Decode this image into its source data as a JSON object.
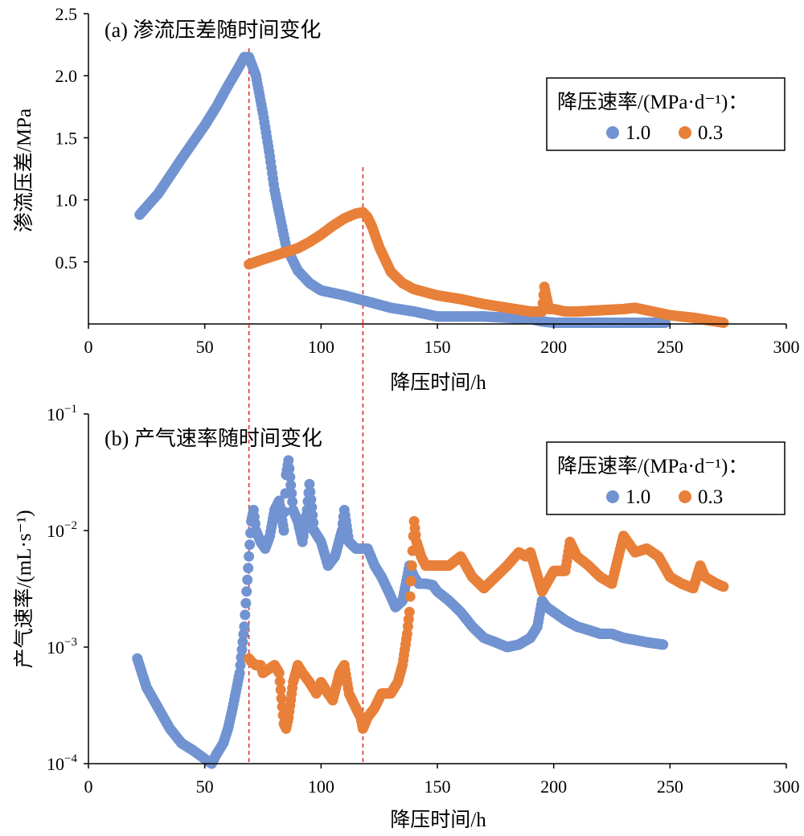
{
  "chart_data": [
    {
      "type": "scatter",
      "title": "(a) 渗流压差随时间变化",
      "xlabel": "降压时间/h",
      "ylabel": "渗流压差/MPa",
      "xlim": [
        0,
        300
      ],
      "ylim": [
        0,
        2.5
      ],
      "xticks": [
        0,
        50,
        100,
        150,
        200,
        250,
        300
      ],
      "xtick_labels": [
        "0",
        "50",
        "100",
        "150",
        "200",
        "250",
        "300"
      ],
      "yticks": [
        0.5,
        1.0,
        1.5,
        2.0,
        2.5
      ],
      "ytick_labels": [
        "0.5",
        "1.0",
        "1.5",
        "2.0",
        "2.5"
      ],
      "grid": false,
      "legend": {
        "title": "降压速率/(MPa·d⁻¹)：",
        "placement": "top-right",
        "entries": [
          "1.0",
          "0.3"
        ]
      },
      "vlines": [
        69,
        118
      ],
      "series": [
        {
          "name": "1.0",
          "color": "#7193D1",
          "x": [
            22,
            30,
            40,
            50,
            55,
            60,
            65,
            67,
            69,
            72,
            75,
            78,
            80,
            85,
            90,
            95,
            100,
            110,
            120,
            130,
            140,
            150,
            160,
            170,
            180,
            190,
            195,
            200,
            210,
            220,
            230,
            240,
            248
          ],
          "y": [
            0.88,
            1.05,
            1.33,
            1.6,
            1.75,
            1.92,
            2.08,
            2.15,
            2.15,
            2.0,
            1.7,
            1.35,
            1.08,
            0.62,
            0.43,
            0.33,
            0.27,
            0.23,
            0.18,
            0.13,
            0.1,
            0.06,
            0.06,
            0.06,
            0.05,
            0.04,
            0.02,
            0.01,
            0.01,
            0.01,
            0.01,
            0.01,
            0.01
          ]
        },
        {
          "name": "0.3",
          "color": "#E8803A",
          "x": [
            69,
            72,
            75,
            80,
            85,
            90,
            95,
            100,
            105,
            110,
            115,
            118,
            120,
            122,
            125,
            130,
            135,
            140,
            150,
            160,
            170,
            180,
            190,
            195,
            196,
            198,
            200,
            205,
            210,
            220,
            230,
            235,
            240,
            250,
            260,
            273
          ],
          "y": [
            0.48,
            0.5,
            0.52,
            0.55,
            0.58,
            0.61,
            0.66,
            0.72,
            0.79,
            0.85,
            0.89,
            0.9,
            0.86,
            0.78,
            0.62,
            0.42,
            0.33,
            0.28,
            0.23,
            0.2,
            0.16,
            0.13,
            0.1,
            0.1,
            0.3,
            0.12,
            0.12,
            0.1,
            0.1,
            0.11,
            0.12,
            0.13,
            0.11,
            0.07,
            0.05,
            0.01
          ]
        }
      ]
    },
    {
      "type": "scatter",
      "title": "(b) 产气速率随时间变化",
      "xlabel": "降压时间/h",
      "ylabel": "产气速率/(mL·s⁻¹)",
      "xlim": [
        0,
        300
      ],
      "ylim": [
        0.0001,
        0.1
      ],
      "yscale": "log",
      "xticks": [
        0,
        50,
        100,
        150,
        200,
        250,
        300
      ],
      "xtick_labels": [
        "0",
        "50",
        "100",
        "150",
        "200",
        "250",
        "300"
      ],
      "yticks": [
        0.0001,
        0.001,
        0.01,
        0.1
      ],
      "ytick_base": "10",
      "ytick_exponents": [
        "−4",
        "−3",
        "−2",
        "−1"
      ],
      "grid": false,
      "legend": {
        "title": "降压速率/(MPa·d⁻¹)：",
        "placement": "top-right",
        "entries": [
          "1.0",
          "0.3"
        ]
      },
      "vlines": [
        69,
        118
      ],
      "series": [
        {
          "name": "1.0",
          "color": "#7193D1",
          "x": [
            21,
            23,
            25,
            30,
            35,
            40,
            45,
            50,
            53,
            55,
            58,
            60,
            62,
            65,
            67,
            68,
            69,
            70,
            71,
            72,
            74,
            76,
            78,
            80,
            82,
            84,
            85,
            86,
            88,
            90,
            92,
            94,
            95,
            97,
            100,
            103,
            106,
            109,
            110,
            112,
            115,
            118,
            120,
            123,
            126,
            129,
            132,
            135,
            138,
            140,
            142,
            145,
            148,
            150,
            155,
            160,
            165,
            170,
            175,
            180,
            185,
            190,
            193,
            195,
            197,
            200,
            205,
            210,
            215,
            220,
            225,
            230,
            235,
            240,
            247
          ],
          "y": [
            0.0008,
            0.0006,
            0.00045,
            0.0003,
            0.0002,
            0.00015,
            0.00013,
            0.00011,
            0.0001,
            0.00012,
            0.00015,
            0.0002,
            0.0003,
            0.0006,
            0.0015,
            0.003,
            0.006,
            0.012,
            0.015,
            0.01,
            0.008,
            0.007,
            0.009,
            0.015,
            0.018,
            0.01,
            0.03,
            0.04,
            0.015,
            0.012,
            0.008,
            0.015,
            0.025,
            0.01,
            0.008,
            0.005,
            0.006,
            0.01,
            0.015,
            0.008,
            0.007,
            0.007,
            0.007,
            0.005,
            0.004,
            0.003,
            0.0022,
            0.0025,
            0.005,
            0.004,
            0.0035,
            0.0035,
            0.0034,
            0.003,
            0.0025,
            0.002,
            0.0015,
            0.0012,
            0.0011,
            0.001,
            0.00105,
            0.0012,
            0.0015,
            0.0025,
            0.0022,
            0.002,
            0.0017,
            0.0015,
            0.0014,
            0.0013,
            0.0013,
            0.0012,
            0.00115,
            0.0011,
            0.00105
          ]
        },
        {
          "name": "0.3",
          "color": "#E8803A",
          "x": [
            69,
            70,
            72,
            74,
            75,
            80,
            82,
            84,
            85,
            86,
            88,
            90,
            92,
            95,
            98,
            100,
            103,
            105,
            108,
            110,
            112,
            115,
            117,
            118,
            120,
            123,
            126,
            130,
            133,
            135,
            137,
            138,
            139,
            140,
            141,
            143,
            145,
            150,
            155,
            160,
            165,
            170,
            172,
            175,
            180,
            185,
            188,
            190,
            195,
            200,
            205,
            207,
            210,
            215,
            220,
            225,
            230,
            235,
            240,
            245,
            250,
            255,
            260,
            263,
            265,
            270,
            273
          ],
          "y": [
            0.0008,
            0.00075,
            0.0007,
            0.0007,
            0.0006,
            0.0007,
            0.0006,
            0.00022,
            0.0002,
            0.00025,
            0.0005,
            0.0007,
            0.0006,
            0.0005,
            0.0004,
            0.0005,
            0.0004,
            0.00035,
            0.0006,
            0.0007,
            0.0004,
            0.0003,
            0.00025,
            0.0002,
            0.00025,
            0.0003,
            0.0004,
            0.0004,
            0.0005,
            0.0007,
            0.0013,
            0.002,
            0.005,
            0.012,
            0.008,
            0.006,
            0.005,
            0.005,
            0.005,
            0.006,
            0.004,
            0.0032,
            0.0035,
            0.004,
            0.005,
            0.0065,
            0.006,
            0.0065,
            0.003,
            0.0045,
            0.0045,
            0.008,
            0.006,
            0.005,
            0.004,
            0.0035,
            0.009,
            0.0065,
            0.007,
            0.006,
            0.004,
            0.0035,
            0.0032,
            0.005,
            0.004,
            0.0035,
            0.0033
          ]
        }
      ]
    }
  ]
}
